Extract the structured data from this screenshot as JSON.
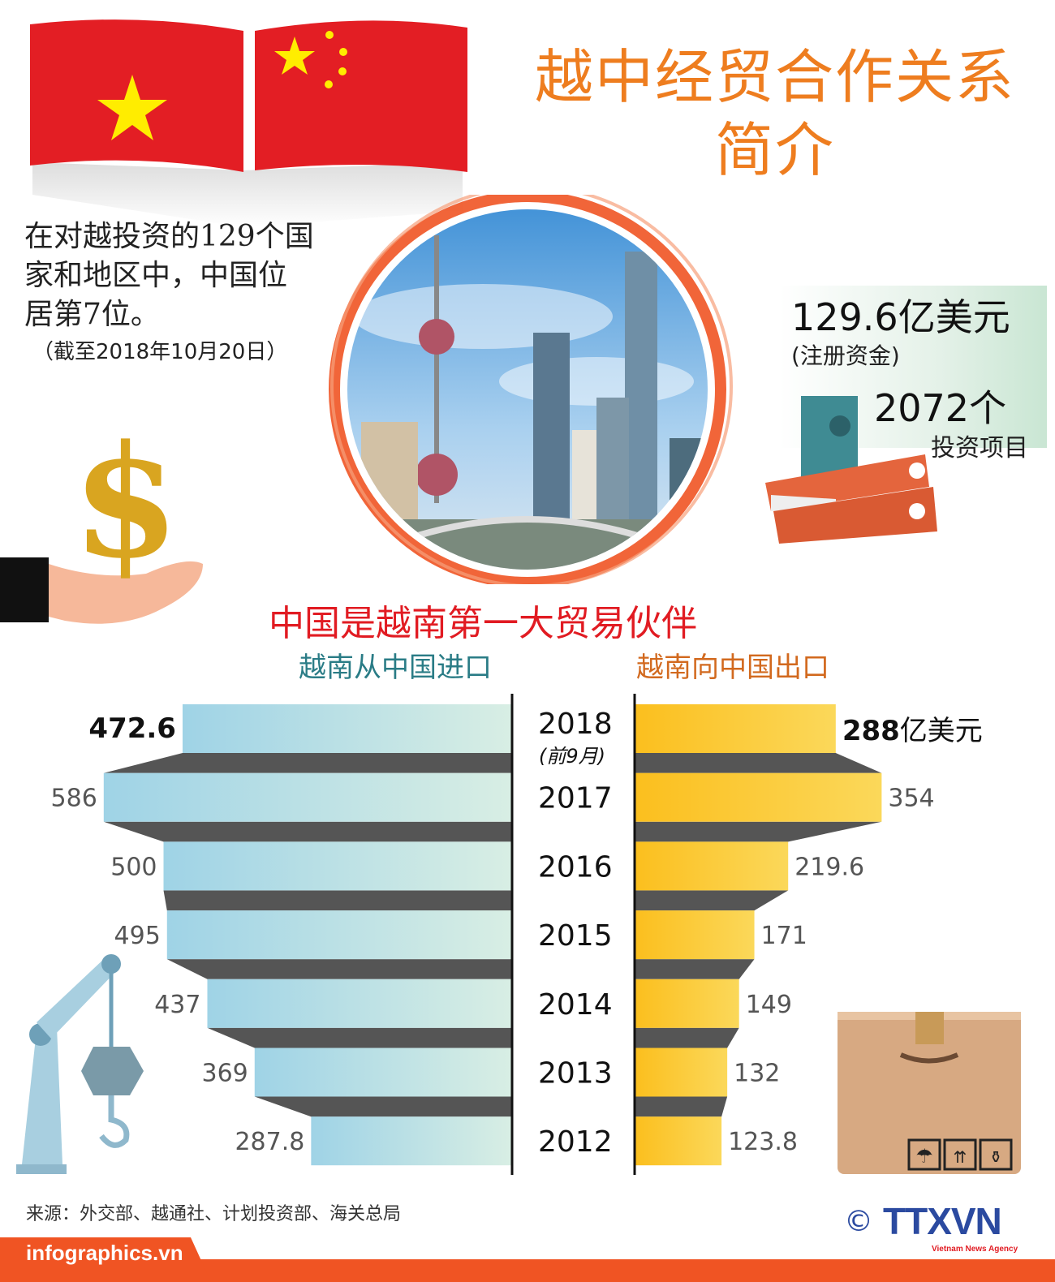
{
  "title_line1": "越中经贸合作关系",
  "title_line2": "简介",
  "intro": {
    "line1": "在对越投资的129个国",
    "line2": "家和地区中，中国位",
    "line3": "居第7位。",
    "as_of": "（截至2018年10月20日）"
  },
  "investment": {
    "registered_capital": "129.6亿美元",
    "registered_capital_label": "(注册资金)",
    "projects": "2072个",
    "projects_label": "投资项目"
  },
  "chart_data": {
    "type": "bar",
    "title": "中国是越南第一大贸易伙伴",
    "categories": [
      "2018",
      "2017",
      "2016",
      "2015",
      "2014",
      "2013",
      "2012"
    ],
    "category_notes": {
      "2018": "(前9月)"
    },
    "series": [
      {
        "name": "越南从中国进口",
        "values": [
          472.6,
          586,
          500,
          495,
          437,
          369,
          287.8
        ],
        "color": "#9fd3e6",
        "labels": [
          "472.6",
          "586",
          "500",
          "495",
          "437",
          "369",
          "287.8"
        ]
      },
      {
        "name": "越南向中国出口",
        "values": [
          288,
          354,
          219.6,
          171,
          149,
          132,
          123.8
        ],
        "color": "#fbc02d",
        "labels": [
          "288",
          "354",
          "219.6",
          "171",
          "149",
          "132",
          "123.8"
        ]
      }
    ],
    "unit_label": "亿美元",
    "layout": "back-to-back horizontal bars"
  },
  "source": "来源：外交部、越通社、计划投资部、海关总局",
  "footer": {
    "site": "infographics.vn",
    "logo": "TTXVN",
    "logo_sub": "Vietnam News Agency",
    "copyright": "©"
  },
  "colors": {
    "title": "#ee7d1f",
    "chart_title": "#e11b22",
    "import_label": "#2a7c86",
    "export_label": "#d2691e",
    "footer": "#f05423",
    "connector": "#555555"
  }
}
